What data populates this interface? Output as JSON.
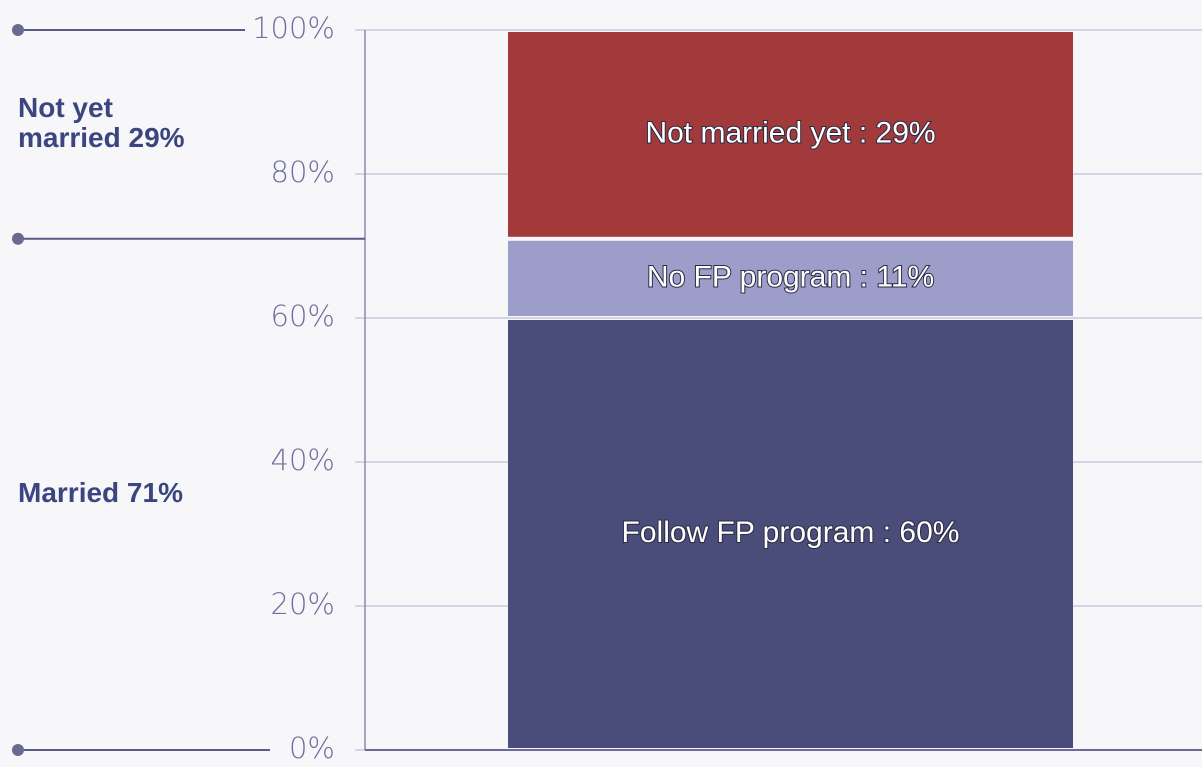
{
  "chart_data": {
    "type": "stacked_bar",
    "categories": [
      null
    ],
    "series": [
      {
        "color": "#4a4d7a",
        "values": [
          60
        ],
        "value_labels": [
          "Follow FP program : 60%"
        ]
      },
      {
        "color": "#9d9dc9",
        "values": [
          11
        ],
        "value_labels": [
          "No FP program : 11%"
        ]
      },
      {
        "color": "#a23a3c",
        "values": [
          29
        ],
        "value_labels": [
          "Not married yet  :  29%"
        ]
      }
    ],
    "ylim": [
      0,
      100
    ],
    "yticks": [
      {
        "value": 0,
        "label": "0%"
      },
      {
        "value": 20,
        "label": "20%"
      },
      {
        "value": 40,
        "label": "40%"
      },
      {
        "value": 60,
        "label": "60%"
      },
      {
        "value": 80,
        "label": "80%"
      },
      {
        "value": 100,
        "label": "100%"
      }
    ],
    "grid": true,
    "annotations": [
      [
        "Not yet",
        "married 29%"
      ],
      [
        "Married 71%"
      ]
    ]
  }
}
